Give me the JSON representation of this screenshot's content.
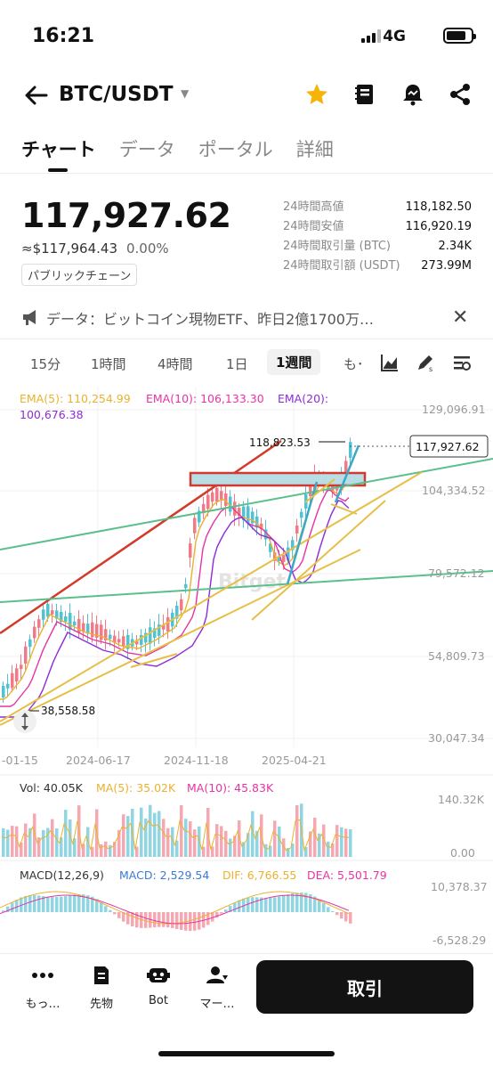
{
  "status": {
    "time": "16:21",
    "network": "4G"
  },
  "header": {
    "pair": "BTC/USDT"
  },
  "tabs": [
    "チャート",
    "データ",
    "ポータル",
    "詳細"
  ],
  "ticker": {
    "last_price": "117,927.62",
    "fiat_price": "≈$117,964.43",
    "change_pct": "0.00%",
    "chain_badge": "パブリックチェーン",
    "stats": [
      {
        "label": "24時間高値",
        "value": "118,182.50"
      },
      {
        "label": "24時間安値",
        "value": "116,920.19"
      },
      {
        "label": "24時間取引量 (BTC)",
        "value": "2.34K"
      },
      {
        "label": "24時間取引額 (USDT)",
        "value": "273.99M"
      }
    ]
  },
  "announcement": {
    "text": "データ：ビットコイン現物ETF、昨日2億1700万…"
  },
  "intervals": {
    "items": [
      "15分",
      "1時間",
      "4時間",
      "1日",
      "1週間",
      "も･"
    ],
    "selected": "1週間"
  },
  "chart": {
    "legend": {
      "ema5": "EMA(5): 110,254.99",
      "ema10": "EMA(10): 106,133.30",
      "ema20_a": "EMA(20):",
      "ema20_b": "100,676.38"
    },
    "price_axis": [
      "129,096.91",
      "104,334.52",
      "79,572.12",
      "54,809.73",
      "30,047.34"
    ],
    "last_price_tag": "117,927.62",
    "high_label": "118,823.53",
    "low_label": "38,558.58",
    "dates": [
      "-01-15",
      "2024-06-17",
      "2024-11-18",
      "2025-04-21"
    ],
    "watermark": "Bitget",
    "colors": {
      "up": "#4fc2d4",
      "down": "#f27a86",
      "ema5": "#e9b230",
      "ema10": "#e535a5",
      "ema20": "#8e2bd8"
    }
  },
  "volume": {
    "vol": "Vol: 40.05K",
    "ma5": "MA(5): 35.02K",
    "ma10": "MA(10): 45.83K",
    "axis_top": "140.32K",
    "axis_bottom": "0.00"
  },
  "macd": {
    "title": "MACD(12,26,9)",
    "macd": "MACD: 2,529.54",
    "dif": "DIF: 6,766.55",
    "dea": "DEA: 5,501.79",
    "axis_top": "10,378.37",
    "axis_bottom": "-6,528.29"
  },
  "bottom_nav": {
    "items": [
      {
        "label": "もっ…",
        "icon": "more-dots-icon"
      },
      {
        "label": "先物",
        "icon": "futures-icon"
      },
      {
        "label": "Bot",
        "icon": "bot-icon"
      },
      {
        "label": "マー…",
        "icon": "market-icon"
      }
    ],
    "trade_label": "取引"
  }
}
